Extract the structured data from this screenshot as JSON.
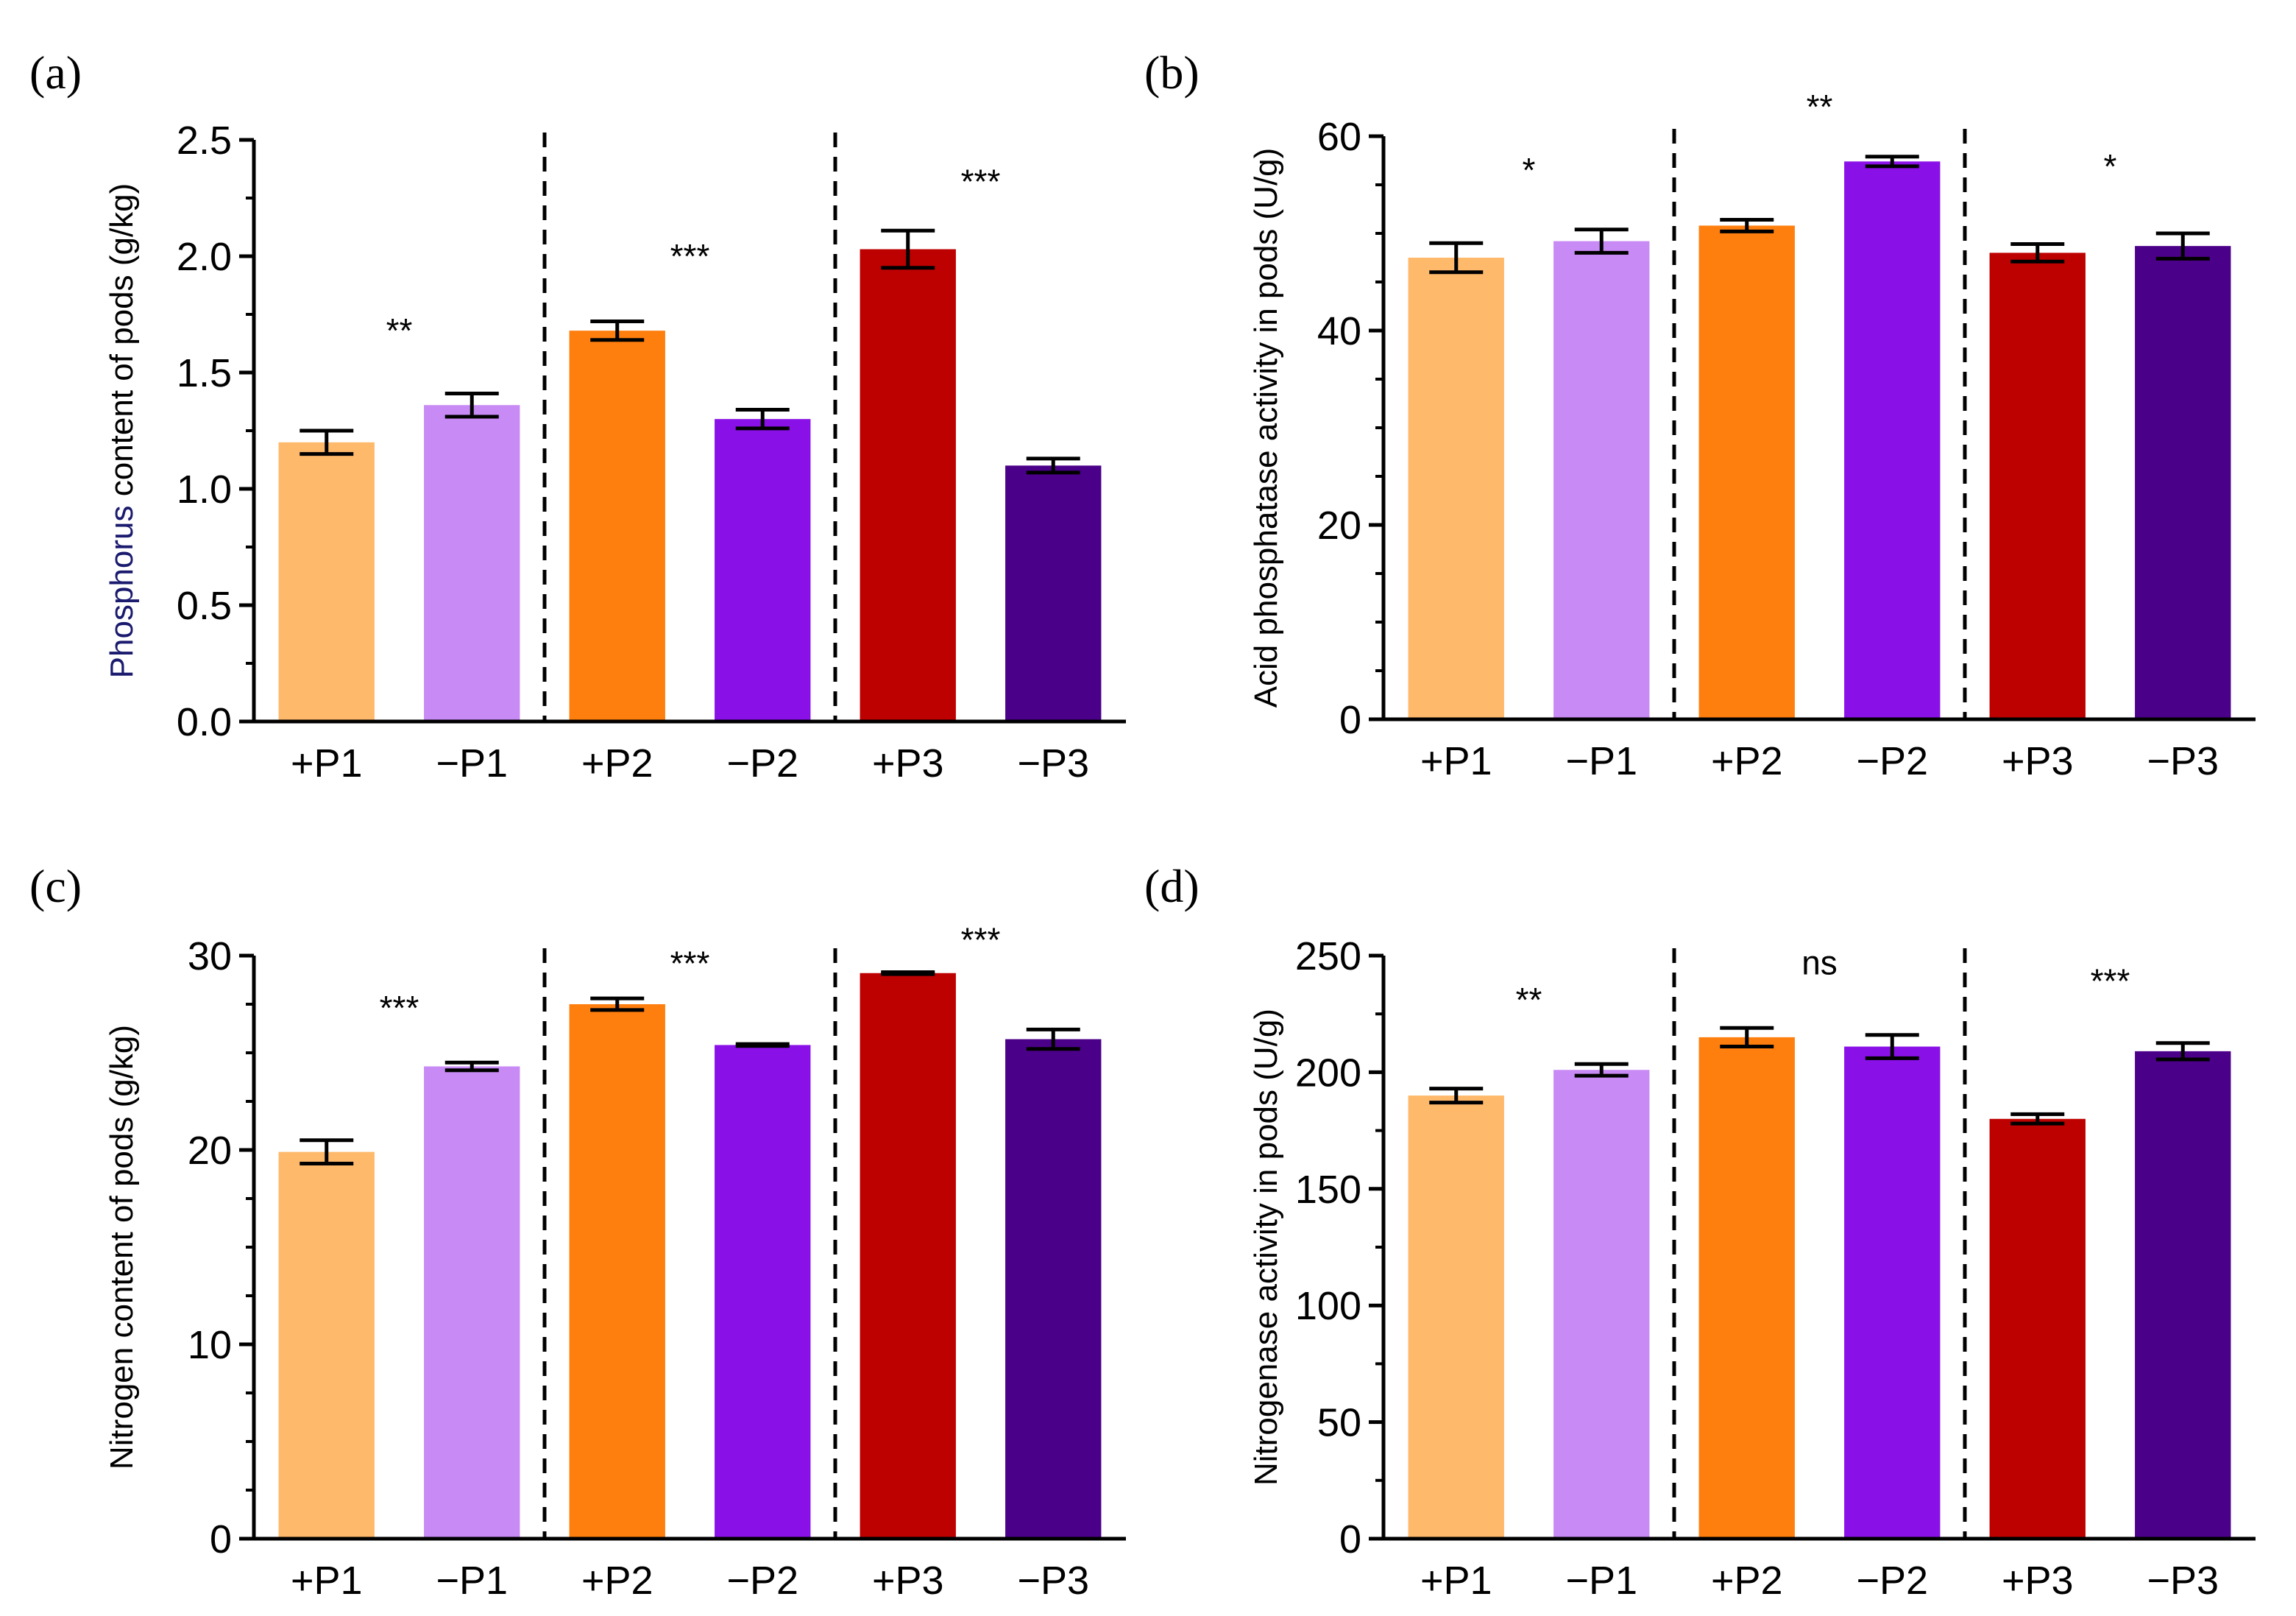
{
  "chart_data": [
    {
      "type": "bar",
      "panel_label": "(a)",
      "ylabel_prefix": "Phosphorus",
      "ylabel_rest": " content of pods (g/kg)",
      "categories": [
        "+P1",
        "−P1",
        "+P2",
        "−P2",
        "+P3",
        "−P3"
      ],
      "values": [
        1.2,
        1.36,
        1.68,
        1.3,
        2.03,
        1.1
      ],
      "errors": [
        0.05,
        0.05,
        0.04,
        0.04,
        0.08,
        0.03
      ],
      "colors": [
        "#ffb96b",
        "#c88af5",
        "#ff7f0e",
        "#8a10e8",
        "#bd0000",
        "#4b0089"
      ],
      "ylim": [
        0,
        2.5
      ],
      "yticks": [
        0.0,
        0.5,
        1.0,
        1.5,
        2.0,
        2.5
      ],
      "ytick_labels": [
        "0.0",
        "0.5",
        "1.0",
        "1.5",
        "2.0",
        "2.5"
      ],
      "minor_ticks": [
        0.25,
        0.75,
        1.25,
        1.75,
        2.25
      ],
      "significance": [
        {
          "label": "**",
          "value": 1.63
        },
        {
          "label": "***",
          "value": 1.95
        },
        {
          "label": "***",
          "value": 2.27
        }
      ],
      "group_separators": true
    },
    {
      "type": "bar",
      "panel_label": "(b)",
      "ylabel_prefix": "",
      "ylabel_rest": "Acid phosphatase activity in pods (U/g)",
      "categories": [
        "+P1",
        "−P1",
        "+P2",
        "−P2",
        "+P3",
        "−P3"
      ],
      "values": [
        47.5,
        49.2,
        50.8,
        57.4,
        48.0,
        48.7
      ],
      "errors": [
        1.5,
        1.2,
        0.6,
        0.5,
        0.9,
        1.3
      ],
      "colors": [
        "#ffb96b",
        "#c88af5",
        "#ff7f0e",
        "#8a10e8",
        "#bd0000",
        "#4b0089"
      ],
      "ylim": [
        0,
        60
      ],
      "yticks": [
        0,
        20,
        40,
        60
      ],
      "ytick_labels": [
        "0",
        "20",
        "40",
        "60"
      ],
      "minor_ticks": [
        5,
        10,
        15,
        25,
        30,
        35,
        45,
        50,
        55
      ],
      "significance": [
        {
          "label": "*",
          "value": 55.3
        },
        {
          "label": "**",
          "value": 61.8
        },
        {
          "label": "*",
          "value": 55.7
        }
      ],
      "group_separators": true
    },
    {
      "type": "bar",
      "panel_label": "(c)",
      "ylabel_prefix": "",
      "ylabel_rest": "Nitrogen content of pods (g/kg)",
      "categories": [
        "+P1",
        "−P1",
        "+P2",
        "−P2",
        "+P3",
        "−P3"
      ],
      "values": [
        19.9,
        24.3,
        27.5,
        25.4,
        29.1,
        25.7
      ],
      "errors": [
        0.6,
        0.2,
        0.3,
        0.05,
        0.05,
        0.5
      ],
      "colors": [
        "#ffb96b",
        "#c88af5",
        "#ff7f0e",
        "#8a10e8",
        "#bd0000",
        "#4b0089"
      ],
      "ylim": [
        0,
        30
      ],
      "yticks": [
        0,
        10,
        20,
        30
      ],
      "ytick_labels": [
        "0",
        "10",
        "20",
        "30"
      ],
      "minor_ticks": [
        2.5,
        5,
        7.5,
        12.5,
        15,
        17.5,
        22.5,
        25,
        27.5
      ],
      "significance": [
        {
          "label": "***",
          "value": 26.7
        },
        {
          "label": "***",
          "value": 29.0
        },
        {
          "label": "***",
          "value": 30.2
        }
      ],
      "group_separators": true
    },
    {
      "type": "bar",
      "panel_label": "(d)",
      "ylabel_prefix": "",
      "ylabel_rest": "Nitrogenase activity in pods (U/g)",
      "categories": [
        "+P1",
        "−P1",
        "+P2",
        "−P2",
        "+P3",
        "−P3"
      ],
      "values": [
        190,
        201,
        215,
        211,
        180,
        209
      ],
      "errors": [
        3,
        2.5,
        4,
        5,
        2,
        3.5
      ],
      "colors": [
        "#ffb96b",
        "#c88af5",
        "#ff7f0e",
        "#8a10e8",
        "#bd0000",
        "#4b0089"
      ],
      "ylim": [
        0,
        250
      ],
      "yticks": [
        0,
        50,
        100,
        150,
        200,
        250
      ],
      "ytick_labels": [
        "0",
        "50",
        "100",
        "150",
        "200",
        "250"
      ],
      "minor_ticks": [
        25,
        75,
        125,
        175,
        225
      ],
      "significance": [
        {
          "label": "**",
          "value": 226
        },
        {
          "label": "ns",
          "value": 242
        },
        {
          "label": "***",
          "value": 234
        }
      ],
      "group_separators": true
    }
  ],
  "colors": {
    "ylabel_highlight": "#1a1a6e",
    "axis": "#000000",
    "separator": "#000000"
  }
}
